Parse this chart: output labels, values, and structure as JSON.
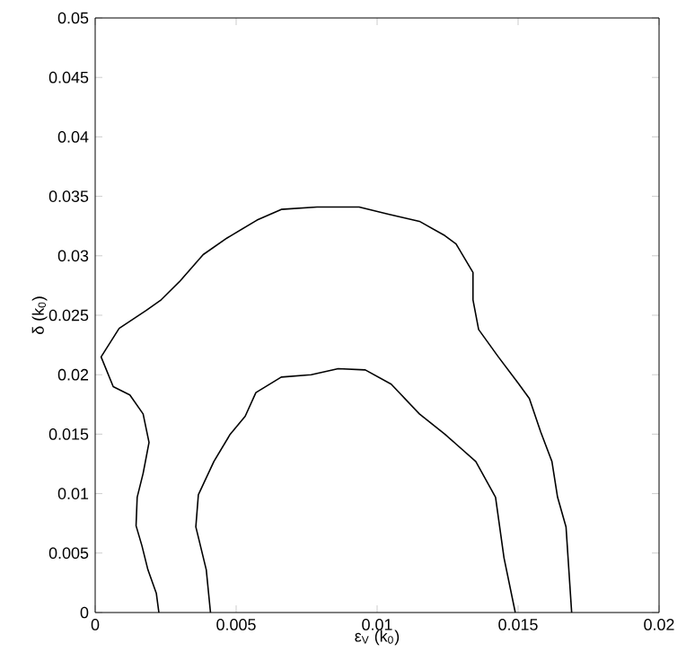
{
  "chart_data": {
    "type": "line",
    "xlabel": "ε$_{V}$ (k$_{0}$)",
    "ylabel": "δ (k$_{0}$)",
    "xlim": [
      0,
      0.02
    ],
    "ylim": [
      0,
      0.05
    ],
    "xticks": [
      0,
      0.005,
      0.01,
      0.015,
      0.02
    ],
    "yticks": [
      0,
      0.005,
      0.01,
      0.015,
      0.02,
      0.025,
      0.03,
      0.035,
      0.04,
      0.045,
      0.05
    ],
    "marker": "none",
    "line_style": "solid",
    "series": [
      {
        "color": "#000000",
        "x": [
          0.00226,
          0.00217,
          0.00187,
          0.00166,
          0.00145,
          0.00149,
          0.0017,
          0.00191,
          0.0017,
          0.00123,
          0.00064,
          0.00021,
          0.00085,
          0.00181,
          0.00234,
          0.00298,
          0.00383,
          0.00468,
          0.00574,
          0.0066,
          0.00787,
          0.00872,
          0.00936,
          0.0104,
          0.0115,
          0.0124,
          0.0128,
          0.0134,
          0.0134,
          0.0136,
          0.0143,
          0.015,
          0.0154,
          0.0158,
          0.0162,
          0.0164,
          0.0167,
          0.0168,
          0.0169
        ],
        "values": [
          0,
          0.0016,
          0.0036,
          0.0056,
          0.0073,
          0.0097,
          0.0117,
          0.0143,
          0.0167,
          0.0183,
          0.019,
          0.0215,
          0.0239,
          0.0254,
          0.0263,
          0.0278,
          0.0301,
          0.0315,
          0.033,
          0.0339,
          0.0341,
          0.0341,
          0.0341,
          0.0335,
          0.0329,
          0.0317,
          0.031,
          0.0286,
          0.0263,
          0.0238,
          0.0215,
          0.0193,
          0.018,
          0.0152,
          0.0127,
          0.0097,
          0.0072,
          0.0036,
          0
        ]
      },
      {
        "color": "#000000",
        "x": [
          0.00409,
          0.00394,
          0.00357,
          0.00366,
          0.00421,
          0.00479,
          0.00532,
          0.0057,
          0.0066,
          0.00766,
          0.00862,
          0.00958,
          0.0105,
          0.0115,
          0.0124,
          0.0135,
          0.0142,
          0.0145,
          0.0149
        ],
        "values": [
          0,
          0.0036,
          0.0072,
          0.0099,
          0.0127,
          0.015,
          0.0165,
          0.0185,
          0.0198,
          0.02,
          0.0205,
          0.0204,
          0.0192,
          0.0167,
          0.015,
          0.0127,
          0.0097,
          0.0046,
          0
        ]
      }
    ]
  }
}
